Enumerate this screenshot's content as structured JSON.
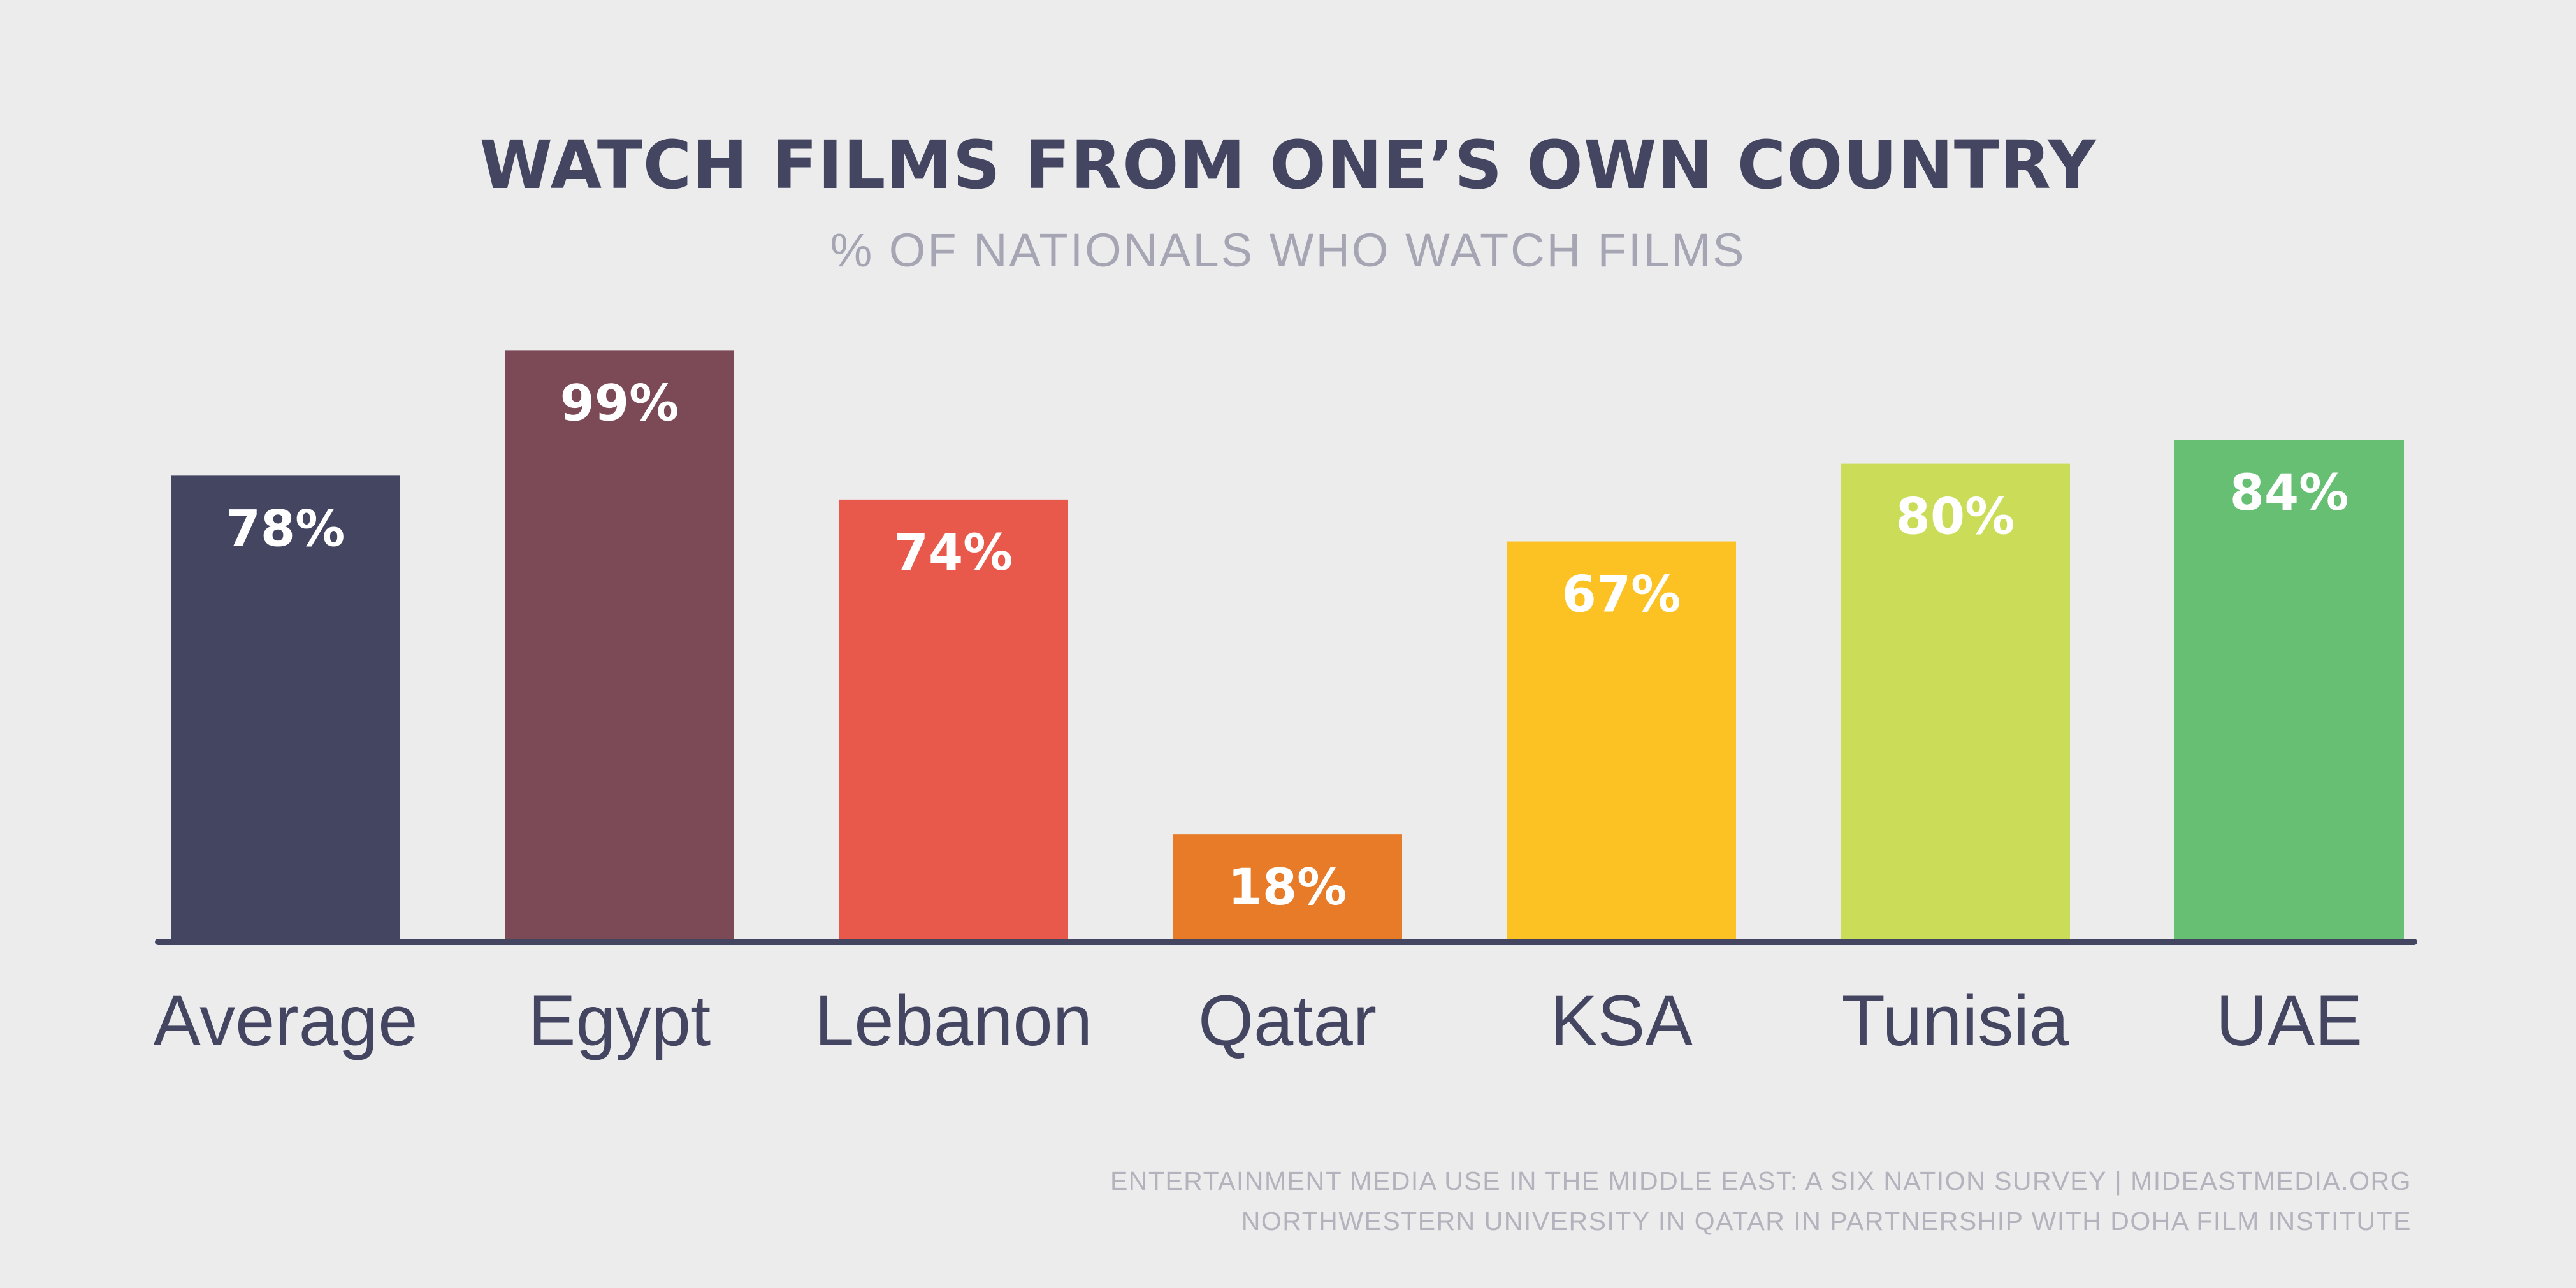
{
  "title": "WATCH FILMS FROM ONE’S OWN COUNTRY",
  "subtitle": "% OF NATIONALS WHO WATCH FILMS",
  "source": {
    "line1": "ENTERTAINMENT MEDIA USE IN THE MIDDLE EAST: A SIX NATION SURVEY | MIDEASTMEDIA.ORG",
    "line2": "NORTHWESTERN UNIVERSITY IN QATAR IN PARTNERSHIP WITH DOHA FILM INSTITUTE"
  },
  "chart_data": {
    "type": "bar",
    "title": "WATCH FILMS FROM ONE’S OWN COUNTRY",
    "subtitle": "% OF NATIONALS WHO WATCH FILMS",
    "categories": [
      "Average",
      "Egypt",
      "Lebanon",
      "Qatar",
      "KSA",
      "Tunisia",
      "UAE"
    ],
    "values": [
      78,
      99,
      74,
      18,
      67,
      80,
      84
    ],
    "value_labels": [
      "78%",
      "99%",
      "74%",
      "18%",
      "67%",
      "80%",
      "84%"
    ],
    "colors": [
      "#434561",
      "#7c4956",
      "#e8594b",
      "#e77b28",
      "#fcc123",
      "#cadc58",
      "#67bf73"
    ],
    "label_color": "#ffffff",
    "axis_color": "#434561",
    "xlabel": "",
    "ylabel": "",
    "ylim": [
      0,
      100
    ],
    "grid": false,
    "legend": "none"
  }
}
